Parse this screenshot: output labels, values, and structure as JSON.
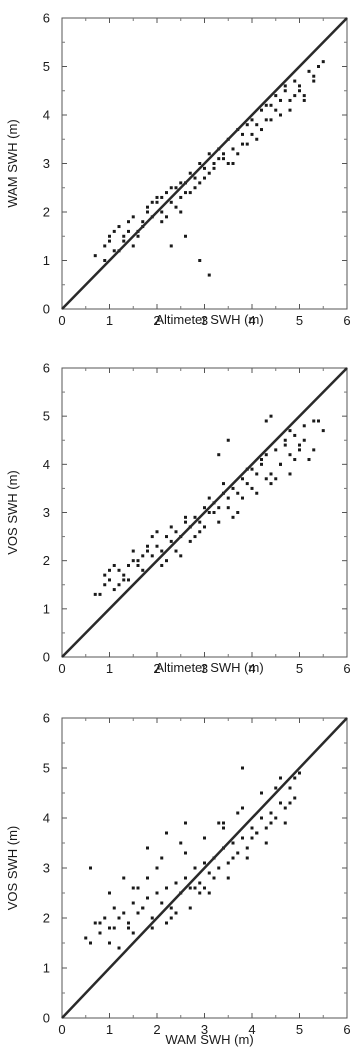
{
  "chart_data": [
    {
      "type": "scatter",
      "xlabel": "Altimeter SWH (m)",
      "ylabel": "WAM SWH (m)",
      "xlim": [
        0,
        6
      ],
      "ylim": [
        0,
        6
      ],
      "xticks": [
        "0",
        "1",
        "2",
        "3",
        "4",
        "5",
        "6"
      ],
      "yticks": [
        "0",
        "1",
        "2",
        "3",
        "4",
        "5",
        "6"
      ],
      "reference_line": {
        "x": [
          0,
          6
        ],
        "y": [
          0,
          6
        ]
      },
      "point_color": "#1a1a1a",
      "series": [
        {
          "x": [
            0.7,
            0.9,
            1.0,
            1.1,
            1.2,
            1.3,
            1.4,
            1.5,
            1.6,
            1.7,
            1.8,
            1.9,
            2.0,
            2.1,
            2.2,
            2.3,
            2.4,
            2.5,
            2.6,
            2.7,
            2.8,
            2.9,
            3.0,
            3.1,
            3.2,
            3.3,
            3.4,
            3.5,
            3.6,
            3.7,
            3.8,
            3.9,
            4.0,
            4.1,
            4.2,
            4.3,
            4.4,
            4.5,
            4.6,
            4.7,
            4.8,
            4.9,
            5.0,
            5.1,
            5.2,
            5.3,
            5.4,
            5.5,
            1.0,
            1.2,
            1.4,
            1.6,
            1.8,
            2.0,
            2.2,
            2.4,
            2.6,
            2.8,
            3.0,
            3.2,
            3.4,
            3.6,
            3.8,
            4.0,
            4.2,
            4.4,
            4.6,
            4.8,
            5.0,
            1.1,
            1.5,
            1.9,
            2.3,
            2.7,
            3.1,
            3.5,
            3.9,
            4.3,
            4.7,
            5.1,
            2.3,
            2.6,
            2.9,
            3.1,
            2.1,
            2.5,
            0.9,
            1.3,
            1.7,
            2.1,
            2.5,
            2.9,
            3.3,
            3.7,
            4.1,
            4.5,
            4.9,
            5.3
          ],
          "y": [
            1.1,
            1.3,
            1.5,
            1.2,
            1.7,
            1.4,
            1.6,
            1.9,
            1.5,
            1.8,
            2.1,
            1.9,
            2.2,
            2.0,
            2.4,
            2.2,
            2.5,
            2.3,
            2.6,
            2.8,
            2.7,
            3.0,
            2.9,
            3.2,
            3.0,
            3.3,
            3.1,
            3.5,
            3.3,
            3.7,
            3.6,
            3.4,
            3.9,
            3.8,
            4.1,
            3.9,
            4.2,
            4.4,
            4.0,
            4.5,
            4.3,
            4.7,
            4.6,
            4.4,
            4.9,
            4.8,
            5.0,
            5.1,
            1.4,
            1.2,
            1.8,
            1.6,
            2.0,
            2.3,
            1.9,
            2.1,
            2.4,
            2.5,
            2.7,
            2.9,
            3.2,
            3.0,
            3.4,
            3.6,
            3.7,
            3.9,
            4.3,
            4.1,
            4.5,
            1.6,
            1.3,
            2.2,
            2.5,
            2.4,
            2.8,
            3.0,
            3.8,
            4.2,
            4.6,
            4.3,
            1.3,
            1.5,
            1.0,
            0.7,
            1.8,
            2.0,
            1.0,
            1.5,
            1.7,
            2.3,
            2.6,
            2.6,
            3.1,
            3.2,
            3.5,
            4.1,
            4.4,
            4.7
          ]
        }
      ]
    },
    {
      "type": "scatter",
      "xlabel": "Altimeter SWH (m)",
      "ylabel": "VOS SWH (m)",
      "xlim": [
        0,
        6
      ],
      "ylim": [
        0,
        6
      ],
      "xticks": [
        "0",
        "1",
        "2",
        "3",
        "4",
        "5",
        "6"
      ],
      "yticks": [
        "0",
        "1",
        "2",
        "3",
        "4",
        "5",
        "6"
      ],
      "reference_line": {
        "x": [
          0,
          6
        ],
        "y": [
          0,
          6
        ]
      },
      "point_color": "#1a1a1a",
      "series": [
        {
          "x": [
            0.7,
            0.8,
            0.9,
            1.0,
            1.1,
            1.2,
            1.3,
            1.4,
            1.5,
            1.6,
            1.7,
            1.8,
            1.9,
            2.0,
            2.1,
            2.2,
            2.3,
            2.4,
            2.5,
            2.6,
            2.7,
            2.8,
            2.9,
            3.0,
            3.1,
            3.2,
            3.3,
            3.4,
            3.5,
            3.6,
            3.7,
            3.8,
            3.9,
            4.0,
            4.1,
            4.2,
            4.3,
            4.4,
            4.5,
            4.6,
            4.7,
            4.8,
            4.9,
            5.0,
            5.1,
            5.2,
            5.3,
            5.5,
            1.0,
            1.2,
            1.4,
            1.6,
            1.8,
            2.0,
            2.2,
            2.4,
            2.6,
            2.8,
            3.0,
            3.2,
            3.4,
            3.6,
            3.8,
            4.0,
            4.2,
            4.4,
            4.6,
            4.8,
            5.0,
            1.1,
            1.5,
            1.9,
            2.3,
            2.7,
            3.1,
            3.5,
            3.9,
            4.3,
            4.7,
            5.1,
            3.3,
            3.5,
            4.3,
            4.4,
            4.8,
            5.4,
            0.9,
            1.3,
            1.7,
            2.1,
            2.5,
            2.9,
            3.3,
            3.7,
            4.1,
            4.5,
            4.9,
            5.3
          ],
          "y": [
            1.3,
            1.3,
            1.5,
            1.6,
            1.4,
            1.8,
            1.7,
            1.6,
            2.0,
            1.9,
            1.8,
            2.2,
            2.1,
            2.3,
            2.2,
            2.5,
            2.4,
            2.6,
            2.5,
            2.8,
            2.7,
            2.9,
            2.8,
            3.1,
            3.0,
            3.2,
            3.1,
            3.4,
            3.3,
            3.5,
            3.4,
            3.7,
            3.6,
            3.9,
            3.8,
            4.0,
            4.2,
            3.8,
            4.3,
            4.0,
            4.5,
            4.2,
            4.6,
            4.4,
            4.8,
            4.1,
            4.9,
            4.7,
            1.8,
            1.5,
            1.9,
            2.0,
            2.3,
            2.6,
            2.0,
            2.2,
            2.9,
            2.5,
            2.7,
            3.0,
            3.6,
            2.9,
            3.3,
            3.5,
            4.1,
            3.6,
            4.0,
            4.7,
            4.3,
            1.9,
            2.2,
            2.5,
            2.7,
            2.4,
            3.3,
            3.1,
            3.9,
            3.7,
            4.4,
            4.5,
            4.2,
            4.5,
            4.9,
            5.0,
            3.8,
            4.9,
            1.7,
            1.6,
            2.1,
            1.9,
            2.1,
            2.6,
            2.8,
            3.0,
            3.4,
            3.7,
            4.1,
            4.3
          ]
        }
      ]
    },
    {
      "type": "scatter",
      "xlabel": "WAM SWH (m)",
      "ylabel": "VOS SWH (m)",
      "xlim": [
        0,
        6
      ],
      "ylim": [
        0,
        6
      ],
      "xticks": [
        "0",
        "1",
        "2",
        "3",
        "4",
        "5",
        "6"
      ],
      "yticks": [
        "0",
        "1",
        "2",
        "3",
        "4",
        "5",
        "6"
      ],
      "reference_line": {
        "x": [
          0,
          6
        ],
        "y": [
          0,
          6
        ]
      },
      "point_color": "#1a1a1a",
      "series": [
        {
          "x": [
            0.5,
            0.6,
            0.7,
            0.8,
            0.9,
            1.0,
            1.1,
            1.2,
            1.3,
            1.4,
            1.5,
            1.6,
            1.7,
            1.8,
            1.9,
            2.0,
            2.1,
            2.2,
            2.3,
            2.4,
            2.5,
            2.6,
            2.7,
            2.8,
            2.9,
            3.0,
            3.1,
            3.2,
            3.3,
            3.4,
            3.5,
            3.6,
            3.7,
            3.8,
            3.9,
            4.0,
            4.1,
            4.2,
            4.3,
            4.4,
            4.5,
            4.6,
            4.7,
            4.8,
            4.9,
            5.0,
            1.0,
            1.2,
            1.4,
            1.6,
            1.8,
            2.0,
            2.2,
            2.4,
            2.6,
            2.8,
            3.0,
            3.2,
            3.4,
            3.6,
            3.8,
            4.0,
            4.2,
            4.4,
            4.6,
            4.8,
            0.6,
            1.0,
            1.3,
            1.7,
            2.1,
            2.5,
            2.9,
            3.3,
            3.7,
            4.1,
            4.5,
            4.9,
            1.5,
            1.8,
            2.2,
            2.6,
            3.0,
            3.4,
            3.8,
            0.8,
            1.1,
            1.5,
            1.9,
            2.3,
            2.7,
            3.1,
            3.5,
            3.9,
            4.3,
            4.7
          ],
          "y": [
            1.6,
            1.5,
            1.9,
            1.7,
            2.0,
            1.8,
            2.2,
            2.0,
            2.1,
            1.9,
            2.3,
            2.1,
            2.2,
            2.4,
            2.0,
            2.5,
            2.3,
            2.6,
            2.2,
            2.7,
            2.5,
            2.8,
            2.6,
            3.0,
            2.7,
            3.1,
            2.9,
            3.2,
            3.0,
            3.4,
            3.1,
            3.5,
            3.3,
            3.6,
            3.4,
            3.8,
            3.7,
            4.0,
            3.8,
            4.1,
            4.0,
            4.3,
            4.2,
            4.6,
            4.4,
            4.9,
            1.5,
            1.4,
            1.8,
            2.6,
            2.8,
            3.0,
            1.9,
            2.1,
            3.3,
            2.6,
            3.6,
            2.8,
            3.8,
            3.2,
            4.2,
            3.6,
            4.5,
            3.9,
            4.8,
            4.3,
            3.0,
            2.5,
            2.8,
            2.2,
            3.2,
            3.5,
            2.5,
            3.9,
            4.1,
            3.7,
            4.6,
            4.8,
            2.6,
            3.4,
            3.7,
            3.9,
            2.6,
            3.9,
            5.0,
            1.9,
            1.8,
            1.7,
            1.8,
            2.0,
            2.2,
            2.5,
            2.8,
            3.2,
            3.5,
            3.9
          ]
        }
      ]
    }
  ]
}
